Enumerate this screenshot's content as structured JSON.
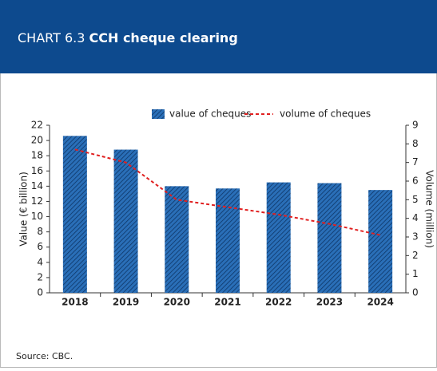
{
  "chart_data": {
    "type": "bar",
    "label": "CHART 6.3",
    "title": "CCH cheque clearing",
    "y_label": "Value (€ billion)",
    "y2_label": "Volume (million)",
    "source": "Source: CBC.",
    "categories": [
      "2018",
      "2019",
      "2020",
      "2021",
      "2022",
      "2023",
      "2024"
    ],
    "series": [
      {
        "name": "value of cheques",
        "color": "#1f5fa8",
        "type": "bar",
        "values": [
          20.6,
          18.8,
          14.0,
          13.7,
          14.5,
          14.4,
          13.5
        ]
      },
      {
        "name": "volume of cheques",
        "color": "#e02020",
        "type": "line",
        "axis": "y2",
        "values": [
          7.7,
          7.0,
          5.0,
          4.6,
          4.2,
          3.7,
          3.1
        ]
      }
    ],
    "ylim": [
      0,
      22
    ],
    "yticks": [
      0,
      2,
      4,
      6,
      8,
      10,
      12,
      14,
      16,
      18,
      20,
      22
    ],
    "y2lim": [
      0,
      9
    ],
    "y2ticks": [
      0,
      1,
      2,
      3,
      4,
      5,
      6,
      7,
      8,
      9
    ],
    "legend": "top"
  }
}
